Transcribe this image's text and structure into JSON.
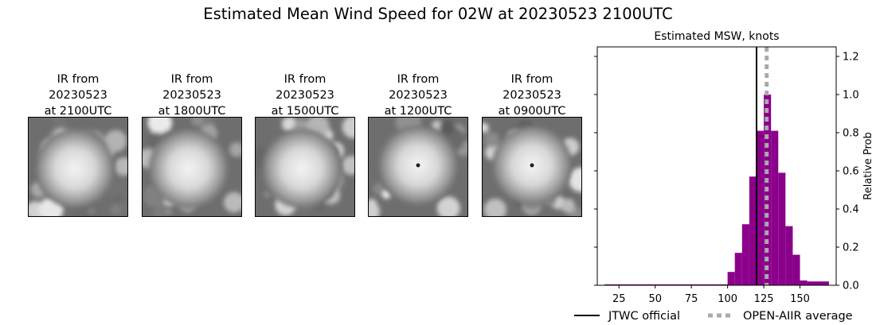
{
  "title": "Estimated Mean Wind Speed for 02W at 20230523 2100UTC",
  "panels": [
    {
      "line1": "IR from",
      "line2": "20230523",
      "line3": "at 2100UTC",
      "eye": false
    },
    {
      "line1": "IR from",
      "line2": "20230523",
      "line3": "at 1800UTC",
      "eye": false
    },
    {
      "line1": "IR from",
      "line2": "20230523",
      "line3": "at 1500UTC",
      "eye": false
    },
    {
      "line1": "IR from",
      "line2": "20230523",
      "line3": "at 1200UTC",
      "eye": true
    },
    {
      "line1": "IR from",
      "line2": "20230523",
      "line3": "at 0900UTC",
      "eye": true
    }
  ],
  "chart_data": {
    "type": "bar",
    "title": "Estimated MSW, knots",
    "ylabel": "Relative Prob",
    "xlim": [
      10,
      175
    ],
    "ylim": [
      0,
      1.25
    ],
    "xticks": [
      25,
      50,
      75,
      100,
      125,
      150
    ],
    "yticks": [
      0.0,
      0.2,
      0.4,
      0.6,
      0.8,
      1.0,
      1.2
    ],
    "ytick_labels": [
      "0.0",
      "0.2",
      "0.4",
      "0.6",
      "0.8",
      "1.0",
      "1.2"
    ],
    "y_axis_side": "right",
    "bin_width": 5,
    "bins": [
      {
        "x0": 15,
        "x1": 100,
        "value": 0.005
      },
      {
        "x0": 100,
        "x1": 105,
        "value": 0.07
      },
      {
        "x0": 105,
        "x1": 110,
        "value": 0.17
      },
      {
        "x0": 110,
        "x1": 115,
        "value": 0.32
      },
      {
        "x0": 115,
        "x1": 120,
        "value": 0.57
      },
      {
        "x0": 120,
        "x1": 125,
        "value": 0.81
      },
      {
        "x0": 125,
        "x1": 130,
        "value": 1.0
      },
      {
        "x0": 130,
        "x1": 135,
        "value": 0.81
      },
      {
        "x0": 135,
        "x1": 140,
        "value": 0.59
      },
      {
        "x0": 140,
        "x1": 145,
        "value": 0.31
      },
      {
        "x0": 145,
        "x1": 150,
        "value": 0.16
      },
      {
        "x0": 150,
        "x1": 155,
        "value": 0.025
      },
      {
        "x0": 155,
        "x1": 170,
        "value": 0.02
      }
    ],
    "bar_color": "#8b008b",
    "lines": [
      {
        "name": "JTWC official",
        "x": 120,
        "color": "#000000",
        "style": "solid"
      },
      {
        "name": "OPEN-AIIR average",
        "x": 127,
        "color": "#aaaaaa",
        "style": "dotted"
      }
    ],
    "legend_position": "bottom"
  }
}
